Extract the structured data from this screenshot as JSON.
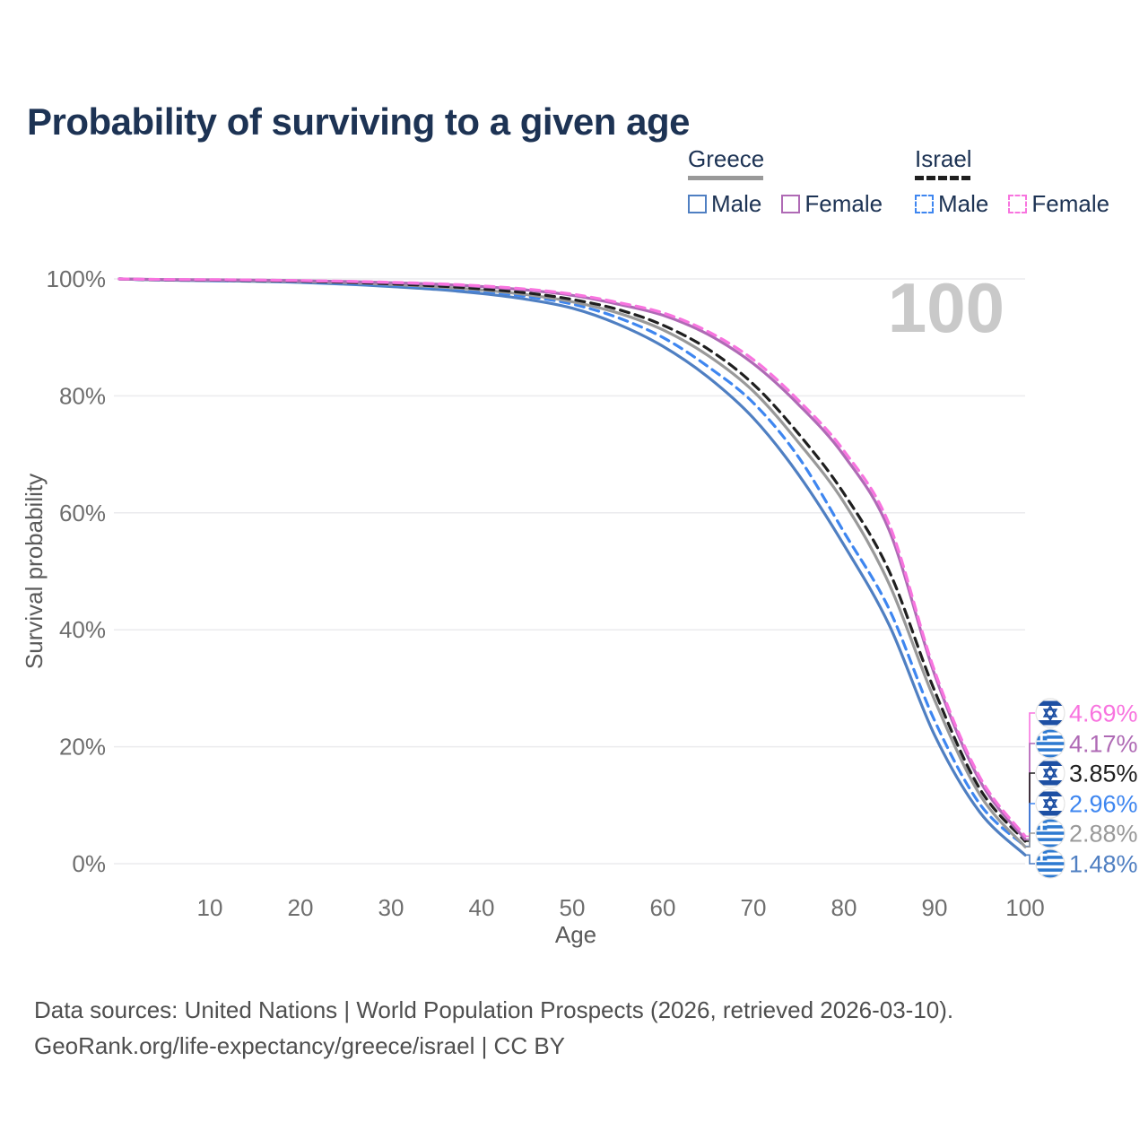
{
  "header": {
    "title": "Probability of surviving to a given age"
  },
  "legend": {
    "groups": [
      {
        "label": "Greece",
        "line_style": "solid",
        "items": [
          {
            "label": "Male",
            "color": "#4f7fc2"
          },
          {
            "label": "Female",
            "color": "#af6ab5"
          }
        ]
      },
      {
        "label": "Israel",
        "line_style": "dashed",
        "items": [
          {
            "label": "Male",
            "color": "#3e86f0"
          },
          {
            "label": "Female",
            "color": "#f874df"
          }
        ]
      }
    ]
  },
  "watermark": "100",
  "chart_data": {
    "type": "line",
    "title": "Probability of surviving to a given age",
    "xlabel": "Age",
    "ylabel": "Survival probability",
    "xlim": [
      0,
      100
    ],
    "ylim": [
      0,
      100
    ],
    "grid": "horizontal",
    "legend_position": "top-right",
    "xticks": [
      10,
      20,
      30,
      40,
      50,
      60,
      70,
      80,
      90,
      100
    ],
    "yticks": [
      {
        "value": 0,
        "label": "0%"
      },
      {
        "value": 20,
        "label": "20%"
      },
      {
        "value": 40,
        "label": "40%"
      },
      {
        "value": 60,
        "label": "60%"
      },
      {
        "value": 80,
        "label": "80%"
      },
      {
        "value": 100,
        "label": "100%"
      }
    ],
    "x": [
      0,
      5,
      10,
      15,
      20,
      25,
      30,
      35,
      40,
      45,
      50,
      55,
      60,
      65,
      70,
      75,
      80,
      85,
      90,
      95,
      100
    ],
    "series": [
      {
        "name": "Greece Male",
        "country": "Greece",
        "sex": "Male",
        "line": "solid",
        "color": "#4f7fc2",
        "values": [
          100,
          99.8,
          99.7,
          99.6,
          99.4,
          99.1,
          98.7,
          98.2,
          97.5,
          96.5,
          95.0,
          92.3,
          88.5,
          83.2,
          76.2,
          66.5,
          54.5,
          40.8,
          22.0,
          8.8,
          1.48
        ]
      },
      {
        "name": "Israel Male",
        "country": "Israel",
        "sex": "Male",
        "line": "dashed",
        "color": "#3e86f0",
        "values": [
          100,
          99.8,
          99.75,
          99.65,
          99.45,
          99.2,
          98.9,
          98.5,
          97.9,
          97.0,
          95.7,
          93.4,
          90.0,
          85.0,
          78.8,
          69.5,
          56.7,
          43.5,
          24.5,
          10.2,
          2.96
        ]
      },
      {
        "name": "Greece Both sexes",
        "country": "Greece",
        "sex": "Both",
        "line": "solid",
        "color": "#999999",
        "values": [
          100,
          99.85,
          99.8,
          99.7,
          99.55,
          99.35,
          99.05,
          98.65,
          98.1,
          97.3,
          96.1,
          94.2,
          91.3,
          86.9,
          80.8,
          72.0,
          61.8,
          47.8,
          28.0,
          11.8,
          2.88
        ]
      },
      {
        "name": "Israel Both sexes",
        "country": "Israel",
        "sex": "Both",
        "line": "dashed",
        "color": "#1f1f1f",
        "values": [
          100,
          99.85,
          99.8,
          99.72,
          99.6,
          99.42,
          99.15,
          98.8,
          98.3,
          97.6,
          96.5,
          94.8,
          92.1,
          88.0,
          82.0,
          73.5,
          63.3,
          50.0,
          29.6,
          12.8,
          3.85
        ]
      },
      {
        "name": "Greece Female",
        "country": "Greece",
        "sex": "Female",
        "line": "solid",
        "color": "#af6ab5",
        "values": [
          100,
          99.9,
          99.85,
          99.8,
          99.7,
          99.55,
          99.35,
          99.1,
          98.7,
          98.1,
          97.2,
          95.7,
          93.8,
          90.5,
          85.5,
          78.5,
          69.8,
          57.0,
          32.4,
          14.2,
          4.17
        ]
      },
      {
        "name": "Israel Female",
        "country": "Israel",
        "sex": "Female",
        "line": "dashed",
        "color": "#f874df",
        "values": [
          100,
          99.9,
          99.87,
          99.82,
          99.72,
          99.6,
          99.42,
          99.18,
          98.8,
          98.25,
          97.4,
          96.0,
          94.2,
          91.0,
          86.2,
          79.2,
          70.6,
          58.0,
          33.0,
          14.8,
          4.69
        ]
      }
    ],
    "end_labels": [
      {
        "series": "Israel Female",
        "flag": "israel",
        "value": "4.69%"
      },
      {
        "series": "Greece Female",
        "flag": "greece",
        "value": "4.17%"
      },
      {
        "series": "Israel Both sexes",
        "flag": "israel",
        "value": "3.85%"
      },
      {
        "series": "Israel Male",
        "flag": "israel",
        "value": "2.96%"
      },
      {
        "series": "Greece Both sexes",
        "flag": "greece",
        "value": "2.88%"
      },
      {
        "series": "Greece Male",
        "flag": "greece",
        "value": "1.48%"
      }
    ],
    "flag_colors": {
      "israel_blue": "#1d4fa3",
      "greece_blue": "#2e7ad1"
    }
  },
  "footer": {
    "line1": "Data sources: United Nations | World Population Prospects (2026, retrieved 2026-03-10).",
    "line2": "GeoRank.org/life-expectancy/greece/israel | CC BY"
  }
}
